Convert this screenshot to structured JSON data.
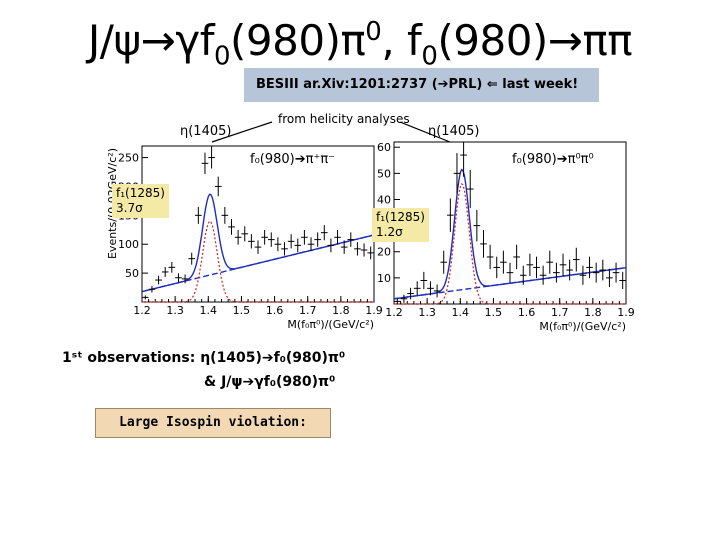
{
  "title": {
    "psi_prefix": "J/ψ→γf",
    "sub1": "0",
    "mid1": "(980)π",
    "sup1": "0",
    "mid2": ", f",
    "sub2": "0",
    "tail": "(980)→ππ"
  },
  "reference": "BESIII ar.Xiv:1201:2737  (➔PRL)   ⇐ last week!",
  "helicity_note": "from helicity analyses",
  "left_panel": {
    "eta_label": "η(1405)",
    "channel_label": "f₀(980)➔π⁺π⁻",
    "f1_label": "f₁(1285)",
    "sigma_label": "3.7σ",
    "xlabel": "M(f₀π⁰)/(GeV/c²)",
    "ylabel": "Events/(0.02GeV/c²)"
  },
  "right_panel": {
    "eta_label": "η(1405)",
    "channel_label": "f₀(980)➔π⁰π⁰",
    "f1_label": "f₁(1285)",
    "sigma_label": "1.2σ",
    "xlabel": "M(f₀π⁰)/(GeV/c²)"
  },
  "observations": {
    "line1": "1ˢᵗ observations:  η(1405)➔f₀(980)π⁰",
    "line2": "& J/ψ➔γf₀(980)π⁰"
  },
  "isospin_note": "Large Isospin violation:",
  "colors": {
    "ref_box": "#b7c5d8",
    "isospin_box": "#f3d9b3",
    "label_box": "#f5e9a6",
    "fit_total": "#1f2dbf",
    "fit_signal": "#d42020",
    "fit_background": "#1f2dbf"
  },
  "chart_data": [
    {
      "type": "scatter",
      "title": "",
      "xlabel": "M(f₀π⁰)/(GeV/c²)",
      "ylabel": "Events/(0.02GeV/c²)",
      "xlim": [
        1.2,
        1.9
      ],
      "ylim": [
        0,
        270
      ],
      "xticks": [
        "1.2",
        "1.3",
        "1.4",
        "1.5",
        "1.6",
        "1.7",
        "1.8",
        "1.9"
      ],
      "yticks": [
        "50",
        "100",
        "150",
        "200",
        "250"
      ],
      "x": [
        1.21,
        1.23,
        1.25,
        1.27,
        1.29,
        1.31,
        1.33,
        1.35,
        1.37,
        1.39,
        1.41,
        1.43,
        1.45,
        1.47,
        1.49,
        1.51,
        1.53,
        1.55,
        1.57,
        1.59,
        1.61,
        1.63,
        1.65,
        1.67,
        1.69,
        1.71,
        1.73,
        1.75,
        1.77,
        1.79,
        1.81,
        1.83,
        1.85,
        1.87,
        1.89
      ],
      "y": [
        8,
        22,
        38,
        52,
        60,
        42,
        40,
        75,
        150,
        240,
        250,
        200,
        150,
        130,
        112,
        118,
        105,
        95,
        112,
        108,
        100,
        92,
        105,
        98,
        112,
        100,
        108,
        120,
        98,
        112,
        95,
        108,
        92,
        90,
        85
      ]
    },
    {
      "type": "scatter",
      "title": "",
      "xlabel": "M(f₀π⁰)/(GeV/c²)",
      "ylabel": "",
      "xlim": [
        1.2,
        1.9
      ],
      "ylim": [
        0,
        62
      ],
      "xticks": [
        "1.2",
        "1.3",
        "1.4",
        "1.5",
        "1.6",
        "1.7",
        "1.8",
        "1.9"
      ],
      "yticks": [
        "10",
        "20",
        "30",
        "40",
        "50",
        "60"
      ],
      "x": [
        1.21,
        1.23,
        1.25,
        1.27,
        1.29,
        1.31,
        1.33,
        1.35,
        1.37,
        1.39,
        1.41,
        1.43,
        1.45,
        1.47,
        1.49,
        1.51,
        1.53,
        1.55,
        1.57,
        1.59,
        1.61,
        1.63,
        1.65,
        1.67,
        1.69,
        1.71,
        1.73,
        1.75,
        1.77,
        1.79,
        1.81,
        1.83,
        1.85,
        1.87,
        1.89
      ],
      "y": [
        1,
        2,
        4,
        6,
        9,
        6,
        5,
        16,
        34,
        50,
        57,
        44,
        30,
        23,
        18,
        14,
        16,
        12,
        18,
        11,
        15,
        14,
        11,
        16,
        12,
        15,
        13,
        17,
        11,
        14,
        12,
        13,
        10,
        12,
        9
      ]
    }
  ]
}
